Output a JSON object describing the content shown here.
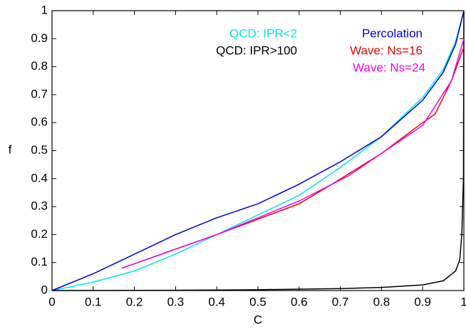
{
  "chart_data": {
    "type": "line",
    "xlabel": "C",
    "ylabel": "f",
    "xlim": [
      0,
      1
    ],
    "ylim": [
      0,
      1
    ],
    "xticks": [
      0,
      0.1,
      0.2,
      0.3,
      0.4,
      0.5,
      0.6,
      0.7,
      0.8,
      0.9,
      1
    ],
    "yticks": [
      0,
      0.1,
      0.2,
      0.3,
      0.4,
      0.5,
      0.6,
      0.7,
      0.8,
      0.9,
      1
    ],
    "series": [
      {
        "name": "QCD: IPR<2",
        "color": "#00e5ee",
        "x": [
          0,
          0.1,
          0.2,
          0.3,
          0.4,
          0.5,
          0.6,
          0.7,
          0.8,
          0.9,
          0.95,
          0.98,
          1
        ],
        "values": [
          0,
          0.03,
          0.07,
          0.13,
          0.2,
          0.27,
          0.34,
          0.44,
          0.55,
          0.69,
          0.79,
          0.89,
          1
        ]
      },
      {
        "name": "QCD: IPR>100",
        "color": "#000000",
        "x": [
          0,
          0.3,
          0.5,
          0.7,
          0.8,
          0.9,
          0.95,
          0.98,
          0.99,
          0.995,
          0.999,
          1
        ],
        "values": [
          0,
          0.001,
          0.003,
          0.007,
          0.011,
          0.02,
          0.035,
          0.07,
          0.11,
          0.2,
          0.4,
          1
        ]
      },
      {
        "name": "Percolation",
        "color": "#0000cc",
        "x": [
          0,
          0.1,
          0.2,
          0.3,
          0.4,
          0.5,
          0.6,
          0.7,
          0.8,
          0.9,
          0.95,
          0.98,
          1
        ],
        "values": [
          0,
          0.06,
          0.13,
          0.2,
          0.26,
          0.31,
          0.38,
          0.46,
          0.55,
          0.68,
          0.78,
          0.88,
          1
        ]
      },
      {
        "name": "Wave: Ns=16",
        "color": "#ee0000",
        "x": [
          0.17,
          0.4,
          0.6,
          0.68,
          0.8,
          0.9,
          0.93,
          0.97,
          1
        ],
        "values": [
          0.08,
          0.2,
          0.31,
          0.38,
          0.49,
          0.6,
          0.63,
          0.75,
          0.87
        ]
      },
      {
        "name": "Wave: Ns=24",
        "color": "#ee00ee",
        "x": [
          0.17,
          0.4,
          0.6,
          0.72,
          0.9,
          0.97,
          1
        ],
        "values": [
          0.08,
          0.2,
          0.32,
          0.41,
          0.59,
          0.75,
          0.9
        ]
      }
    ]
  }
}
